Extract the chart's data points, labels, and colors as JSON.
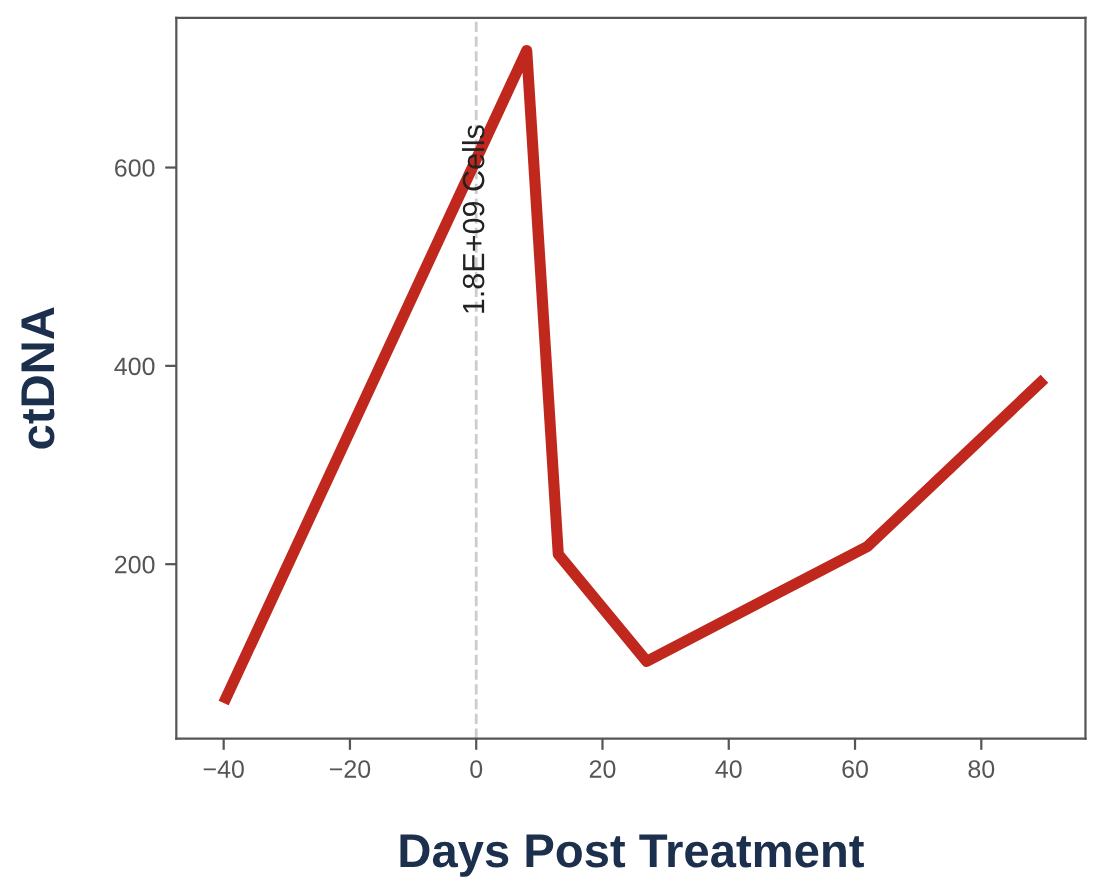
{
  "chart_data": {
    "type": "line",
    "xlabel": "Days Post Treatment",
    "ylabel": "ctDNA",
    "x": [
      -40,
      8,
      13,
      27,
      62,
      90
    ],
    "series": [
      {
        "color": "#c0281e",
        "values": [
          60,
          718,
          210,
          102,
          218,
          387
        ]
      }
    ],
    "xlim": [
      -47.5,
      96.5
    ],
    "ylim": [
      24,
      751
    ],
    "xticks": [
      {
        "value": -40,
        "label": "−40"
      },
      {
        "value": -20,
        "label": "−20"
      },
      0,
      20,
      40,
      60,
      80
    ],
    "yticks": [
      200,
      400,
      600
    ],
    "ref_lines": [
      {
        "axis": "x",
        "value": 0,
        "label": "1.8E+09 Cells",
        "color": "#cccccc",
        "line_style": "dashed"
      }
    ],
    "grid": false,
    "marker": "none",
    "line_style": "solid"
  }
}
